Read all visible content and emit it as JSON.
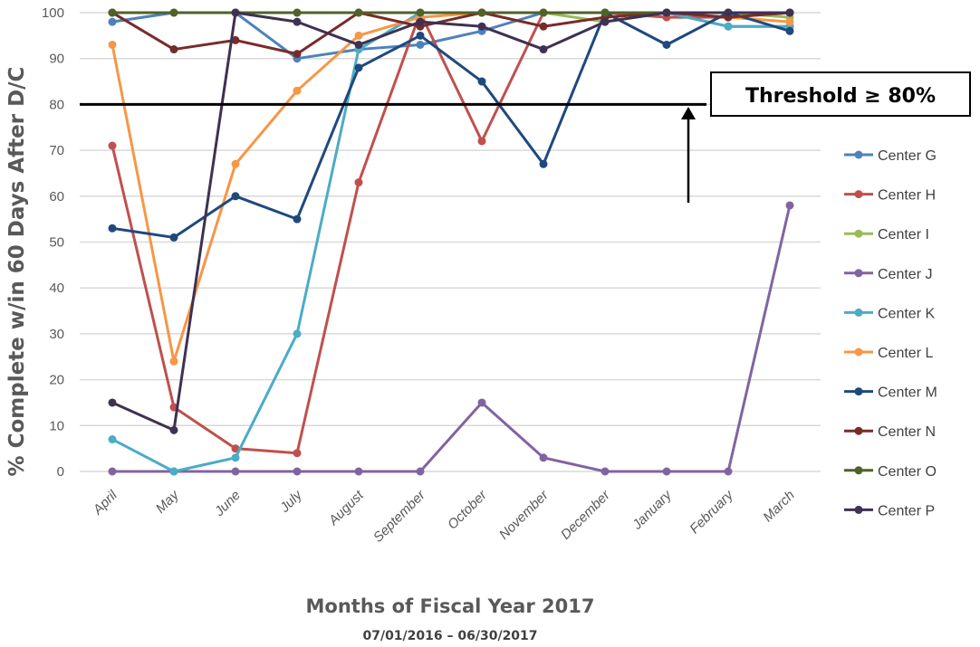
{
  "chart_data": {
    "type": "line",
    "ylabel": "% Complete w/in 60 Days After D/C",
    "xlabel": "Months of Fiscal Year 2017",
    "xsublabel": "07/01/2016 – 06/30/2017",
    "ylim": [
      0,
      100
    ],
    "yticks": [
      0,
      10,
      20,
      30,
      40,
      50,
      60,
      70,
      80,
      90,
      100
    ],
    "grid": true,
    "legend_position": "right",
    "categories": [
      "April",
      "May",
      "June",
      "July",
      "August",
      "September",
      "October",
      "November",
      "December",
      "January",
      "February",
      "March"
    ],
    "threshold": {
      "value": 80,
      "label": "Threshold ≥ 80%"
    },
    "series": [
      {
        "name": "Center G",
        "color": "#4F81BD",
        "values": [
          98,
          100,
          100,
          90,
          92,
          93,
          96,
          100,
          100,
          100,
          97,
          97
        ]
      },
      {
        "name": "Center H",
        "color": "#C0504D",
        "values": [
          71,
          14,
          5,
          4,
          63,
          100,
          72,
          100,
          100,
          99,
          99,
          100
        ]
      },
      {
        "name": "Center I",
        "color": "#9BBB59",
        "values": [
          100,
          100,
          100,
          100,
          100,
          100,
          100,
          100,
          98,
          100,
          100,
          99
        ]
      },
      {
        "name": "Center J",
        "color": "#8064A2",
        "values": [
          0,
          0,
          0,
          0,
          0,
          0,
          15,
          3,
          0,
          0,
          0,
          58
        ]
      },
      {
        "name": "Center K",
        "color": "#4BACC6",
        "values": [
          7,
          0,
          3,
          30,
          92,
          100,
          100,
          100,
          100,
          100,
          97,
          97
        ]
      },
      {
        "name": "Center L",
        "color": "#F79646",
        "values": [
          93,
          24,
          67,
          83,
          95,
          99,
          100,
          100,
          100,
          100,
          99,
          98
        ]
      },
      {
        "name": "Center M",
        "color": "#1F497D",
        "values": [
          53,
          51,
          60,
          55,
          88,
          95,
          85,
          67,
          100,
          93,
          100,
          96
        ]
      },
      {
        "name": "Center N",
        "color": "#772C2A",
        "values": [
          100,
          92,
          94,
          91,
          100,
          97,
          100,
          97,
          99,
          100,
          99,
          100
        ]
      },
      {
        "name": "Center O",
        "color": "#4F6228",
        "values": [
          100,
          100,
          100,
          100,
          100,
          100,
          100,
          100,
          100,
          100,
          100,
          100
        ]
      },
      {
        "name": "Center P",
        "color": "#3F3151",
        "values": [
          15,
          9,
          100,
          98,
          93,
          98,
          97,
          92,
          98,
          100,
          100,
          100
        ]
      }
    ]
  }
}
